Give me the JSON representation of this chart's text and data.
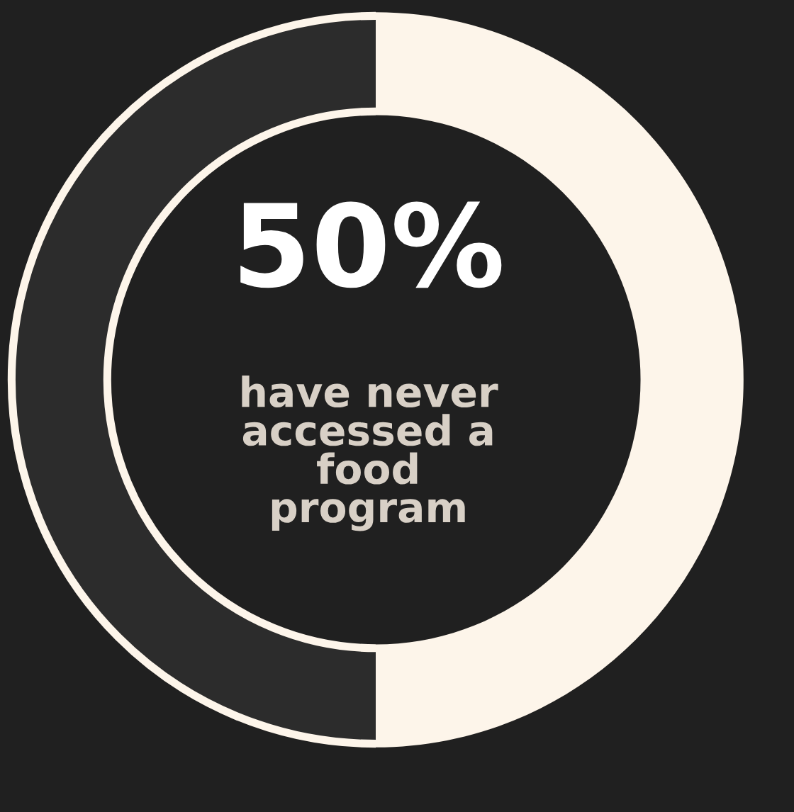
{
  "chart_data": {
    "type": "donut",
    "title": "50%",
    "subtitle": "have never\naccessed a\nfood\nprogram",
    "categories": [
      null,
      null
    ],
    "values": [
      50,
      50
    ],
    "colors": [
      "#fdf5ea",
      "#2c2c2c"
    ],
    "legend": false
  }
}
